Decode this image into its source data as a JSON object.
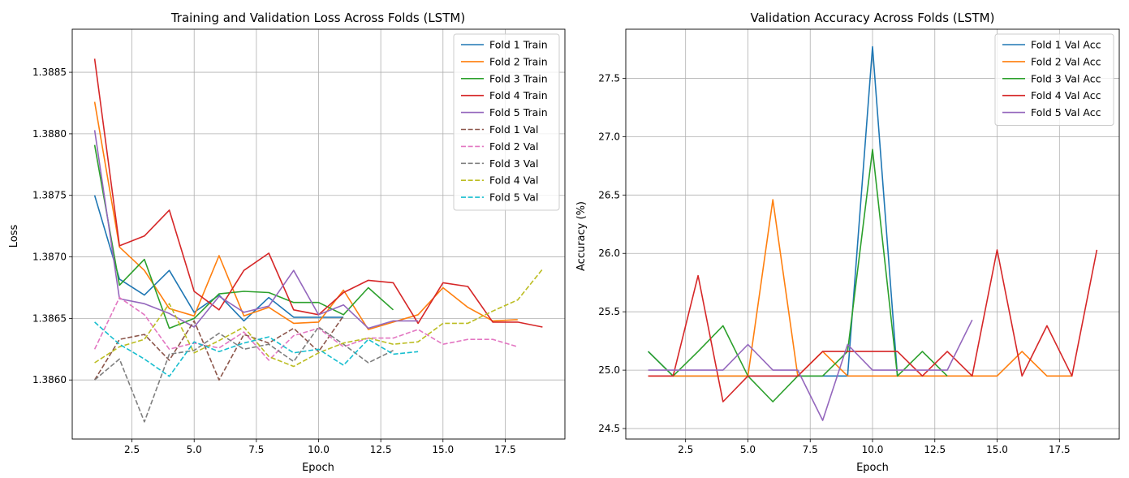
{
  "chart_data": [
    {
      "type": "line",
      "title": "Training and Validation Loss Across Folds (LSTM)",
      "xlabel": "Epoch",
      "ylabel": "Loss",
      "xlim": [
        0.1,
        19.9
      ],
      "ylim": [
        1.38552,
        1.38885
      ],
      "xticks": [
        2.5,
        5.0,
        7.5,
        10.0,
        12.5,
        15.0,
        17.5
      ],
      "xtick_labels": [
        "2.5",
        "5.0",
        "7.5",
        "10.0",
        "12.5",
        "15.0",
        "17.5"
      ],
      "yticks": [
        1.386,
        1.3865,
        1.387,
        1.3875,
        1.388,
        1.3885
      ],
      "ytick_labels": [
        "1.3860",
        "1.3865",
        "1.3870",
        "1.3875",
        "1.3880",
        "1.3885"
      ],
      "grid": true,
      "legend": "top-right",
      "series": [
        {
          "name": "Fold 1 Train",
          "color": "#1f77b4",
          "dash": false,
          "x": [
            1,
            2,
            3,
            4,
            5,
            6,
            7,
            8,
            9,
            10,
            11
          ],
          "y": [
            1.3875,
            1.38682,
            1.38669,
            1.38689,
            1.38655,
            1.38669,
            1.38648,
            1.38667,
            1.38651,
            1.38651,
            1.38651
          ]
        },
        {
          "name": "Fold 2 Train",
          "color": "#ff7f0e",
          "dash": false,
          "x": [
            1,
            2,
            3,
            4,
            5,
            6,
            7,
            8,
            9,
            10,
            11,
            12,
            13,
            14,
            15,
            16,
            17,
            18
          ],
          "y": [
            1.38826,
            1.38708,
            1.38689,
            1.38658,
            1.38652,
            1.38701,
            1.38652,
            1.38659,
            1.38646,
            1.38647,
            1.38673,
            1.38641,
            1.38647,
            1.38653,
            1.38675,
            1.38659,
            1.38648,
            1.38649
          ]
        },
        {
          "name": "Fold 3 Train",
          "color": "#2ca02c",
          "dash": false,
          "x": [
            1,
            2,
            3,
            4,
            5,
            6,
            7,
            8,
            9,
            10,
            11,
            12,
            13
          ],
          "y": [
            1.38791,
            1.38677,
            1.38698,
            1.38642,
            1.3865,
            1.3867,
            1.38672,
            1.38671,
            1.38663,
            1.38663,
            1.38653,
            1.38675,
            1.38657
          ]
        },
        {
          "name": "Fold 4 Train",
          "color": "#d62728",
          "dash": false,
          "x": [
            1,
            2,
            3,
            4,
            5,
            6,
            7,
            8,
            9,
            10,
            11,
            12,
            13,
            14,
            15,
            16,
            17,
            18,
            19
          ],
          "y": [
            1.38861,
            1.38709,
            1.38717,
            1.38738,
            1.38672,
            1.38657,
            1.38689,
            1.38703,
            1.38657,
            1.38653,
            1.38671,
            1.38681,
            1.38679,
            1.38646,
            1.38679,
            1.38676,
            1.38647,
            1.38647,
            1.38643
          ]
        },
        {
          "name": "Fold 5 Train",
          "color": "#9467bd",
          "dash": false,
          "x": [
            1,
            2,
            3,
            4,
            5,
            6,
            7,
            8,
            9,
            10,
            11,
            12,
            13,
            14
          ],
          "y": [
            1.38803,
            1.38666,
            1.38662,
            1.38654,
            1.38643,
            1.38668,
            1.38655,
            1.3866,
            1.38689,
            1.38653,
            1.38661,
            1.38642,
            1.38648,
            1.38648
          ]
        },
        {
          "name": "Fold 1 Val",
          "color": "#8c564b",
          "dash": true,
          "x": [
            1,
            2,
            3,
            4,
            5,
            6,
            7,
            8,
            9,
            10,
            11
          ],
          "y": [
            1.386,
            1.38633,
            1.38637,
            1.38616,
            1.38648,
            1.386,
            1.38637,
            1.3863,
            1.38642,
            1.38623,
            1.38652
          ]
        },
        {
          "name": "Fold 2 Val",
          "color": "#e377c2",
          "dash": true,
          "x": [
            1,
            2,
            3,
            4,
            5,
            6,
            7,
            8,
            9,
            10,
            11,
            12,
            13,
            14,
            15,
            16,
            17,
            18
          ],
          "y": [
            1.38625,
            1.38667,
            1.38653,
            1.38625,
            1.3863,
            1.38626,
            1.38639,
            1.38616,
            1.38636,
            1.38642,
            1.38627,
            1.38634,
            1.38634,
            1.38641,
            1.38629,
            1.38633,
            1.38633,
            1.38627
          ]
        },
        {
          "name": "Fold 3 Val",
          "color": "#7f7f7f",
          "dash": true,
          "x": [
            1,
            2,
            3,
            4,
            5,
            6,
            7,
            8,
            9,
            10,
            11,
            12,
            13
          ],
          "y": [
            1.386,
            1.38617,
            1.38566,
            1.38621,
            1.38624,
            1.38638,
            1.38625,
            1.38629,
            1.38615,
            1.38643,
            1.38629,
            1.38614,
            1.38624
          ]
        },
        {
          "name": "Fold 4 Val",
          "color": "#bcbd22",
          "dash": true,
          "x": [
            1,
            2,
            3,
            4,
            5,
            6,
            7,
            8,
            9,
            10,
            11,
            12,
            13,
            14,
            15,
            16,
            17,
            18,
            19
          ],
          "y": [
            1.38614,
            1.38627,
            1.38633,
            1.38662,
            1.38622,
            1.38632,
            1.38643,
            1.38619,
            1.38611,
            1.38622,
            1.3863,
            1.38634,
            1.38629,
            1.38631,
            1.38646,
            1.38646,
            1.38656,
            1.38665,
            1.3869
          ]
        },
        {
          "name": "Fold 5 Val",
          "color": "#17becf",
          "dash": true,
          "x": [
            1,
            2,
            3,
            4,
            5,
            6,
            7,
            8,
            9,
            10,
            11,
            12,
            13,
            14
          ],
          "y": [
            1.38647,
            1.38629,
            1.38617,
            1.38603,
            1.38631,
            1.38623,
            1.3863,
            1.38635,
            1.38622,
            1.38625,
            1.38612,
            1.38633,
            1.38621,
            1.38623
          ]
        }
      ]
    },
    {
      "type": "line",
      "title": "Validation Accuracy Across Folds (LSTM)",
      "xlabel": "Epoch",
      "ylabel": "Accuracy (%)",
      "xlim": [
        0.1,
        19.9
      ],
      "ylim": [
        24.41,
        27.92
      ],
      "xticks": [
        2.5,
        5.0,
        7.5,
        10.0,
        12.5,
        15.0,
        17.5
      ],
      "xtick_labels": [
        "2.5",
        "5.0",
        "7.5",
        "10.0",
        "12.5",
        "15.0",
        "17.5"
      ],
      "yticks": [
        24.5,
        25.0,
        25.5,
        26.0,
        26.5,
        27.0,
        27.5
      ],
      "ytick_labels": [
        "24.5",
        "25.0",
        "25.5",
        "26.0",
        "26.5",
        "27.0",
        "27.5"
      ],
      "grid": true,
      "legend": "top-right",
      "series": [
        {
          "name": "Fold 1 Val Acc",
          "color": "#1f77b4",
          "dash": false,
          "x": [
            1,
            2,
            3,
            4,
            5,
            6,
            7,
            8,
            9,
            10,
            11
          ],
          "y": [
            25.16,
            24.95,
            24.95,
            24.95,
            24.95,
            24.95,
            24.95,
            24.95,
            24.95,
            27.77,
            24.95
          ]
        },
        {
          "name": "Fold 2 Val Acc",
          "color": "#ff7f0e",
          "dash": false,
          "x": [
            1,
            2,
            3,
            4,
            5,
            6,
            7,
            8,
            9,
            10,
            11,
            12,
            13,
            14,
            15,
            16,
            17,
            18
          ],
          "y": [
            24.95,
            24.95,
            24.95,
            24.95,
            24.95,
            26.46,
            24.95,
            25.16,
            24.95,
            24.95,
            24.95,
            24.95,
            24.95,
            24.95,
            24.95,
            25.16,
            24.95,
            24.95
          ]
        },
        {
          "name": "Fold 3 Val Acc",
          "color": "#2ca02c",
          "dash": false,
          "x": [
            1,
            2,
            3,
            4,
            5,
            6,
            7,
            8,
            9,
            10,
            11,
            12,
            13
          ],
          "y": [
            25.16,
            24.95,
            25.16,
            25.38,
            24.95,
            24.73,
            24.95,
            24.95,
            25.16,
            26.89,
            24.95,
            25.16,
            24.95
          ]
        },
        {
          "name": "Fold 4 Val Acc",
          "color": "#d62728",
          "dash": false,
          "x": [
            1,
            2,
            3,
            4,
            5,
            6,
            7,
            8,
            9,
            10,
            11,
            12,
            13,
            14,
            15,
            16,
            17,
            18,
            19
          ],
          "y": [
            24.95,
            24.95,
            25.81,
            24.73,
            24.95,
            24.95,
            24.95,
            25.16,
            25.16,
            25.16,
            25.16,
            24.95,
            25.16,
            24.95,
            26.03,
            24.95,
            25.38,
            24.95,
            26.03
          ]
        },
        {
          "name": "Fold 5 Val Acc",
          "color": "#9467bd",
          "dash": false,
          "x": [
            1,
            2,
            3,
            4,
            5,
            6,
            7,
            8,
            9,
            10,
            11,
            12,
            13,
            14
          ],
          "y": [
            25.0,
            25.0,
            25.0,
            25.0,
            25.22,
            25.0,
            25.0,
            24.57,
            25.22,
            25.0,
            25.0,
            25.0,
            25.0,
            25.43
          ]
        }
      ]
    }
  ]
}
